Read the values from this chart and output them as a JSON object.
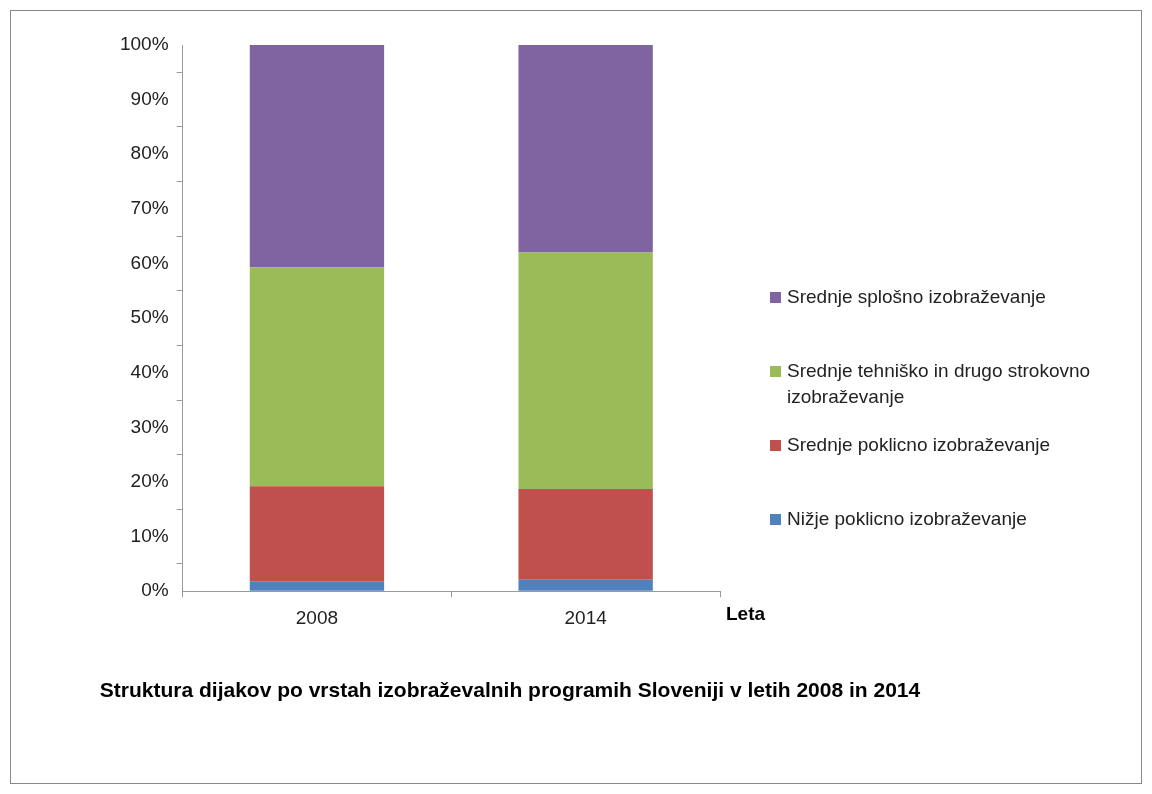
{
  "chart_data": {
    "type": "bar",
    "stacked": true,
    "title": "Struktura dijakov po vrstah izobraževalnih programih Sloveniji v letih 2008 in 2014",
    "xlabel": "Leta",
    "categories": [
      "2008",
      "2014"
    ],
    "series": [
      {
        "name": "Nižje poklicno izobraževanje",
        "color": "#4f81bd",
        "values": [
          1.8,
          2.1
        ]
      },
      {
        "name": "Srednje poklicno  izobraževanje",
        "color": "#c0504d",
        "values": [
          17.4,
          16.6
        ]
      },
      {
        "name": "Srednje tehniško in drugo strokovno izobraževanje",
        "color": "#9bbb59",
        "values": [
          40.1,
          43.3
        ]
      },
      {
        "name": "Srednje splošno izobraževanje",
        "color": "#8064a2",
        "values": [
          40.7,
          38.0
        ]
      }
    ],
    "ylim": [
      0,
      100
    ],
    "yticks": [
      {
        "value": 0,
        "label": "0%"
      },
      {
        "value": 10,
        "label": "10%"
      },
      {
        "value": 20,
        "label": "20%"
      },
      {
        "value": 30,
        "label": "30%"
      },
      {
        "value": 40,
        "label": "40%"
      },
      {
        "value": 50,
        "label": "50%"
      },
      {
        "value": 60,
        "label": "60%"
      },
      {
        "value": 70,
        "label": "70%"
      },
      {
        "value": 80,
        "label": "80%"
      },
      {
        "value": 90,
        "label": "90%"
      },
      {
        "value": 100,
        "label": "100%"
      }
    ],
    "grid": false,
    "legend": "right"
  }
}
